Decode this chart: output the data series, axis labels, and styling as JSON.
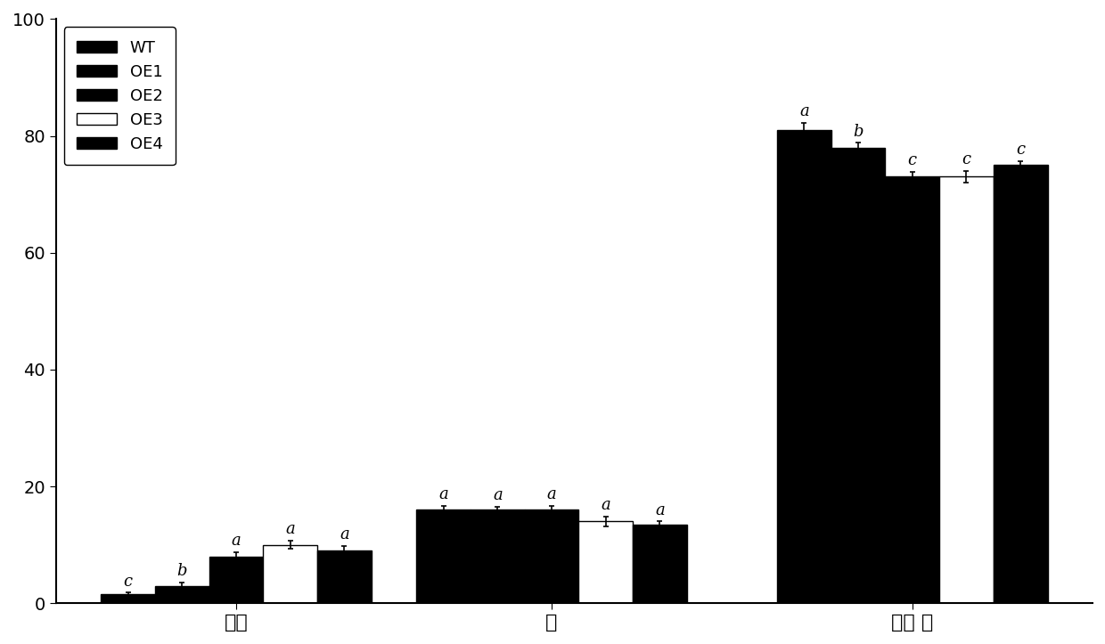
{
  "groups": [
    "烷烃",
    "醇",
    "一级 醇"
  ],
  "series": [
    "WT",
    "OE1",
    "OE2",
    "OE3",
    "OE4"
  ],
  "values": [
    [
      1.5,
      3.0,
      8.0,
      10.0,
      9.0
    ],
    [
      16.0,
      16.0,
      16.0,
      14.0,
      13.5
    ],
    [
      81.0,
      78.0,
      73.0,
      73.0,
      75.0
    ]
  ],
  "errors": [
    [
      0.3,
      0.5,
      0.8,
      0.7,
      0.8
    ],
    [
      0.7,
      0.5,
      0.6,
      0.8,
      0.5
    ],
    [
      1.2,
      0.8,
      0.8,
      1.0,
      0.6
    ]
  ],
  "sig_labels": [
    [
      "c",
      "b",
      "a",
      "a",
      "a"
    ],
    [
      "a",
      "a",
      "a",
      "a",
      "a"
    ],
    [
      "a",
      "b",
      "c",
      "c",
      "c"
    ]
  ],
  "colors": [
    "#000000",
    "#000000",
    "#000000",
    "#ffffff",
    "#000000"
  ],
  "edge_colors": [
    "#000000",
    "#000000",
    "#000000",
    "#000000",
    "#000000"
  ],
  "hatches": [
    null,
    "..",
    null,
    null,
    null
  ],
  "ylim": [
    0,
    100
  ],
  "yticks": [
    0,
    20,
    40,
    60,
    80,
    100
  ],
  "group_label_fontsize": 16,
  "tick_fontsize": 14,
  "legend_fontsize": 13,
  "sig_fontsize": 13,
  "bar_width": 0.12,
  "background_color": "#ffffff"
}
